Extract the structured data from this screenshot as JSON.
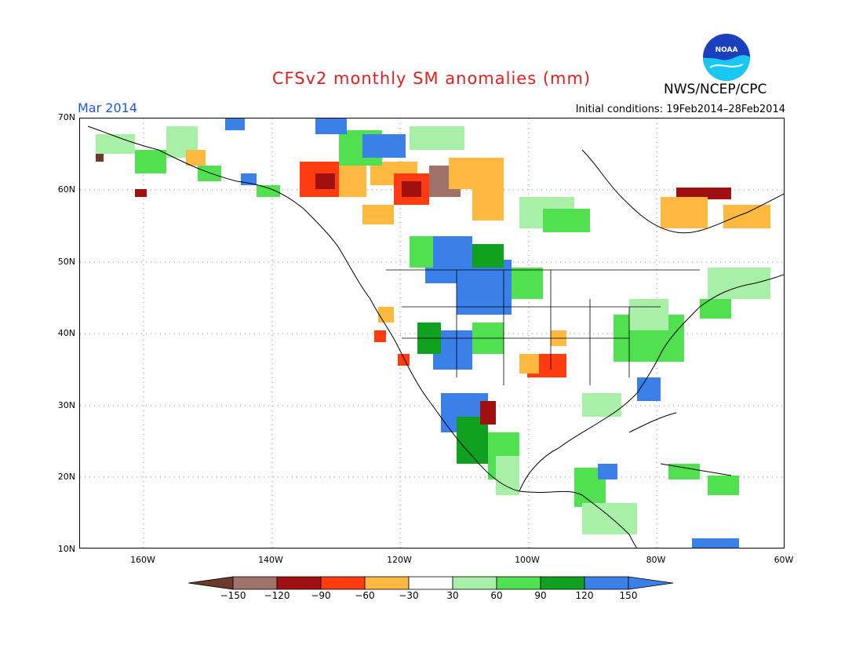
{
  "header": {
    "title": "CFSv2 monthly SM anomalies (mm)",
    "org": "NWS/NCEP/CPC",
    "logo_text": "NOAA",
    "month": "Mar 2014",
    "initial_conditions": "Initial conditions: 19Feb2014–28Feb2014"
  },
  "axes": {
    "lat_labels": [
      "70N",
      "60N",
      "50N",
      "40N",
      "30N",
      "20N",
      "10N"
    ],
    "lon_labels": [
      "160W",
      "140W",
      "120W",
      "100W",
      "80W",
      "60W"
    ],
    "lat_range": [
      10,
      70
    ],
    "lon_range": [
      -170,
      -60
    ],
    "grid": "dotted"
  },
  "legend": {
    "labels": [
      "−150",
      "−120",
      "−90",
      "−60",
      "−30",
      "30",
      "60",
      "90",
      "120",
      "150"
    ],
    "colors": [
      "#6b3a2a",
      "#a0736a",
      "#a01010",
      "#ff3b10",
      "#ffb840",
      "#ffffff",
      "#a8f0a8",
      "#50e050",
      "#10a020",
      "#3a80e8",
      "#3a80e8"
    ]
  },
  "colors": {
    "title": "#e02020",
    "month": "#2255dd",
    "land_outline": "#000000"
  }
}
